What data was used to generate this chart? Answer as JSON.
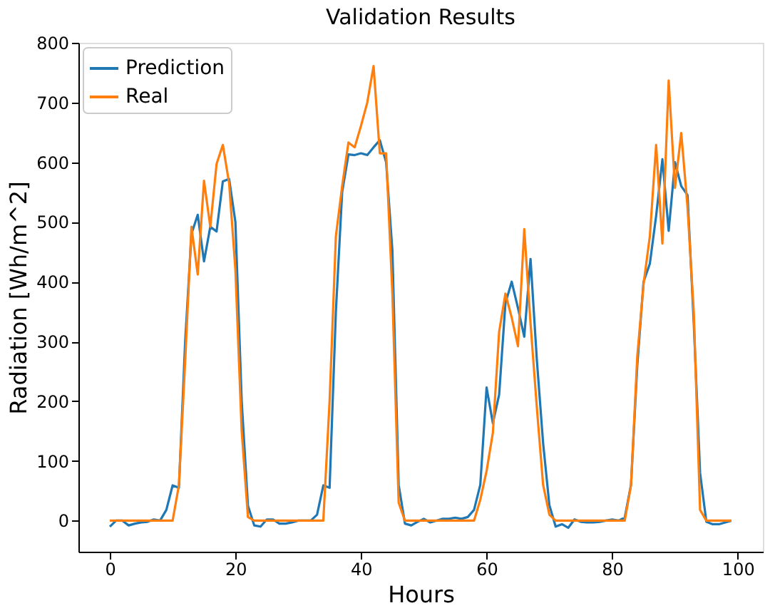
{
  "chart_data": {
    "type": "line",
    "title": "Validation Results",
    "xlabel": "Hours",
    "ylabel": "Radiation [Wh/m^2]",
    "x": [
      0,
      1,
      2,
      3,
      4,
      5,
      6,
      7,
      8,
      9,
      10,
      11,
      12,
      13,
      14,
      15,
      16,
      17,
      18,
      19,
      20,
      21,
      22,
      23,
      24,
      25,
      26,
      27,
      28,
      29,
      30,
      31,
      32,
      33,
      34,
      35,
      36,
      37,
      38,
      39,
      40,
      41,
      42,
      43,
      44,
      45,
      46,
      47,
      48,
      49,
      50,
      51,
      52,
      53,
      54,
      55,
      56,
      57,
      58,
      59,
      60,
      61,
      62,
      63,
      64,
      65,
      66,
      67,
      68,
      69,
      70,
      71,
      72,
      73,
      74,
      75,
      76,
      77,
      78,
      79,
      80,
      81,
      82,
      83,
      84,
      85,
      86,
      87,
      88,
      89,
      90,
      91,
      92,
      93,
      94,
      95,
      96,
      97,
      98,
      99
    ],
    "series": [
      {
        "name": "Prediction",
        "color": "#1f77b4",
        "values": [
          -10,
          0,
          0,
          -8,
          -5,
          -3,
          -2,
          2,
          0,
          18,
          59,
          55,
          300,
          480,
          512,
          434,
          492,
          484,
          568,
          572,
          500,
          200,
          25,
          -8,
          -10,
          2,
          2,
          -5,
          -5,
          -3,
          0,
          0,
          0,
          10,
          59,
          55,
          350,
          550,
          613,
          612,
          615,
          612,
          625,
          637,
          600,
          452,
          60,
          -5,
          -8,
          -2,
          3,
          -3,
          0,
          3,
          3,
          5,
          3,
          6,
          18,
          60,
          223,
          163,
          211,
          364,
          400,
          356,
          308,
          438,
          270,
          130,
          26,
          -10,
          -6,
          -12,
          2,
          -2,
          -3,
          -3,
          -2,
          0,
          2,
          0,
          5,
          60,
          260,
          400,
          430,
          510,
          605,
          485,
          600,
          560,
          545,
          330,
          80,
          -2,
          -6,
          -6,
          -3,
          0
        ]
      },
      {
        "name": "Real",
        "color": "#ff7f0e",
        "values": [
          0,
          0,
          0,
          0,
          0,
          0,
          0,
          0,
          0,
          0,
          0,
          59,
          267,
          492,
          412,
          569,
          492,
          597,
          629,
          565,
          420,
          150,
          6,
          0,
          0,
          0,
          0,
          0,
          0,
          0,
          0,
          0,
          0,
          0,
          0,
          200,
          476,
          560,
          633,
          625,
          661,
          700,
          761,
          615,
          615,
          380,
          30,
          0,
          0,
          0,
          0,
          0,
          0,
          0,
          0,
          0,
          0,
          0,
          0,
          35,
          83,
          147,
          316,
          380,
          340,
          292,
          488,
          330,
          190,
          60,
          10,
          0,
          0,
          0,
          0,
          0,
          0,
          0,
          0,
          0,
          0,
          0,
          0,
          59,
          275,
          396,
          476,
          629,
          464,
          737,
          557,
          649,
          525,
          348,
          18,
          0,
          0,
          0,
          0,
          0
        ]
      }
    ],
    "xlim": [
      -5,
      104
    ],
    "xticks": [
      0,
      20,
      40,
      60,
      80,
      100
    ],
    "ylim": [
      -52,
      800
    ],
    "yticks": [
      0,
      100,
      200,
      300,
      400,
      500,
      600,
      700,
      800
    ],
    "legend": "top left",
    "grid": false
  }
}
